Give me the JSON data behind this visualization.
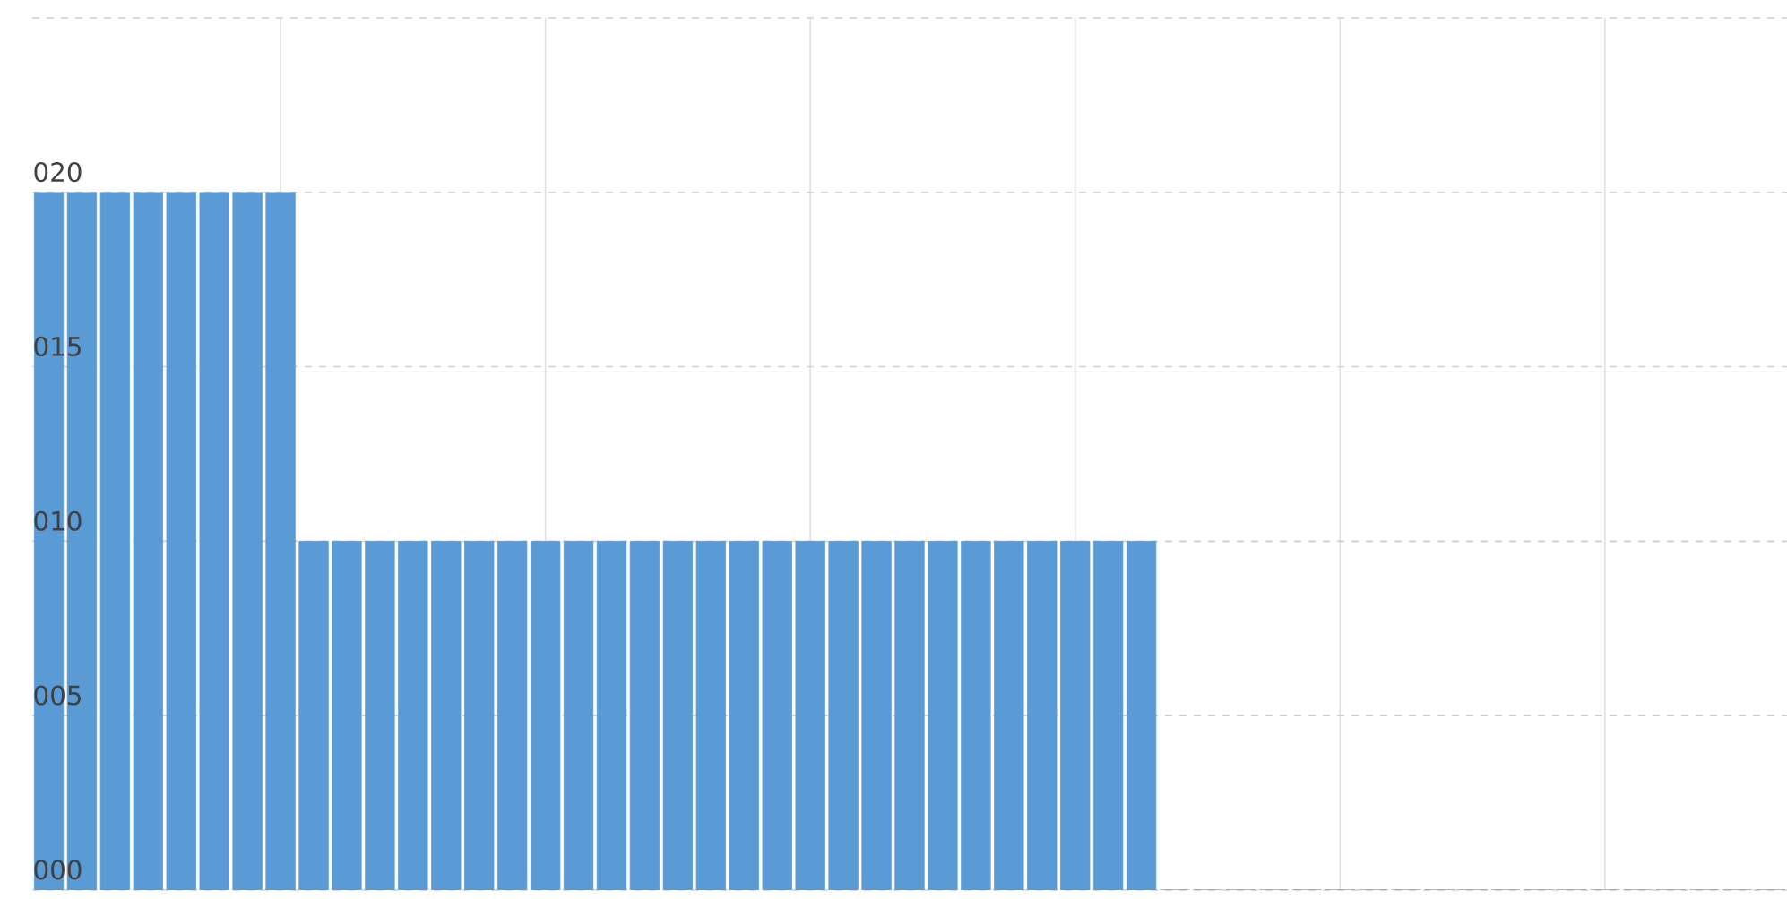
{
  "chart_data": {
    "type": "bar",
    "color": "#5b9bd5",
    "categories": [
      null,
      null,
      null,
      null,
      null,
      null,
      null,
      null,
      null,
      null,
      null,
      null,
      null,
      null,
      null,
      null,
      null,
      null,
      null,
      null,
      null,
      null,
      null,
      null,
      null,
      null,
      null,
      null,
      null,
      null,
      null,
      null,
      null,
      null,
      null,
      null,
      null,
      null,
      null,
      null,
      null,
      null,
      null,
      null,
      null,
      null,
      null,
      null,
      null,
      null,
      null,
      null,
      null
    ],
    "values": [
      20,
      20,
      20,
      20,
      20,
      20,
      20,
      20,
      10,
      10,
      10,
      10,
      10,
      10,
      10,
      10,
      10,
      10,
      10,
      10,
      10,
      10,
      10,
      10,
      10,
      10,
      10,
      10,
      10,
      10,
      10,
      10,
      10,
      10,
      0,
      0,
      0,
      0,
      0,
      0,
      0,
      0,
      0,
      0,
      0,
      0,
      0,
      0,
      0,
      0,
      0,
      0,
      0
    ],
    "ylim": [
      0,
      25
    ],
    "yticks": [
      {
        "value": 0,
        "label": "000"
      },
      {
        "value": 5,
        "label": "005"
      },
      {
        "value": 10,
        "label": "010"
      },
      {
        "value": 15,
        "label": "015"
      },
      {
        "value": 20,
        "label": "020"
      },
      {
        "value": 25,
        "label": null
      }
    ],
    "grid": true,
    "tick_labels": "y"
  }
}
